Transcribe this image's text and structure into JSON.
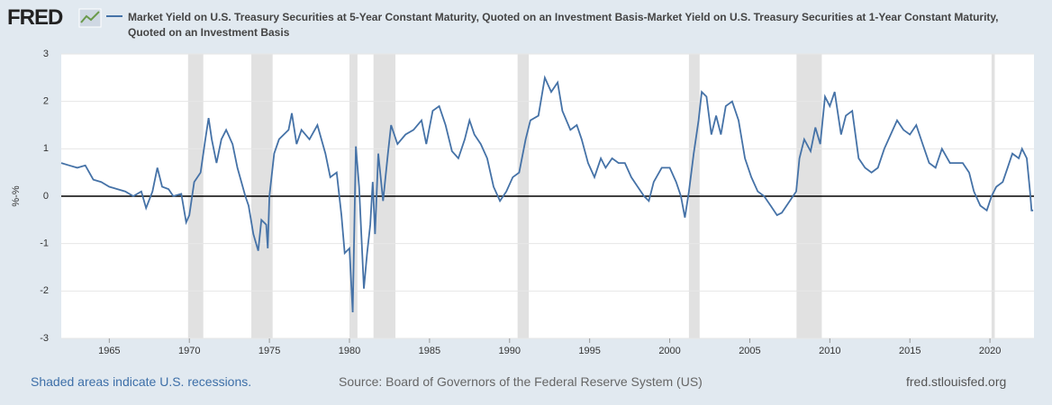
{
  "logo": "FRED",
  "footer": {
    "recessions_note": "Shaded areas indicate U.S. recessions.",
    "source": "Source: Board of Governors of the Federal Reserve System (US)",
    "site": "fred.stlouisfed.org"
  },
  "chart_data": {
    "type": "line",
    "ylabel": "%-%",
    "series": [
      {
        "name": "Market Yield on U.S. Treasury Securities at 5-Year Constant Maturity, Quoted on an Investment Basis-Market Yield on U.S. Treasury Securities at 1-Year Constant Maturity, Quoted on an Investment Basis",
        "color": "#4572a7",
        "x": [
          1962.0,
          1962.5,
          1963.0,
          1963.5,
          1964.0,
          1964.5,
          1965.0,
          1965.5,
          1966.0,
          1966.5,
          1967.0,
          1967.3,
          1967.7,
          1968.0,
          1968.3,
          1968.7,
          1969.0,
          1969.5,
          1969.8,
          1970.0,
          1970.3,
          1970.7,
          1971.0,
          1971.2,
          1971.4,
          1971.7,
          1972.0,
          1972.3,
          1972.7,
          1973.0,
          1973.5,
          1973.7,
          1974.0,
          1974.3,
          1974.5,
          1974.8,
          1974.9,
          1975.0,
          1975.3,
          1975.6,
          1975.9,
          1976.2,
          1976.4,
          1976.7,
          1977.0,
          1977.5,
          1978.0,
          1978.5,
          1978.8,
          1979.2,
          1979.5,
          1979.7,
          1980.0,
          1980.2,
          1980.4,
          1980.6,
          1980.9,
          1981.1,
          1981.3,
          1981.45,
          1981.6,
          1981.8,
          1982.1,
          1982.4,
          1982.6,
          1983.0,
          1983.5,
          1984.0,
          1984.5,
          1984.8,
          1985.2,
          1985.6,
          1986.0,
          1986.4,
          1986.8,
          1987.2,
          1987.5,
          1987.8,
          1988.2,
          1988.6,
          1989.0,
          1989.4,
          1989.8,
          1990.2,
          1990.6,
          1991.0,
          1991.3,
          1991.8,
          1992.2,
          1992.6,
          1993.0,
          1993.3,
          1993.8,
          1994.2,
          1994.5,
          1994.9,
          1995.3,
          1995.7,
          1996.0,
          1996.4,
          1996.8,
          1997.2,
          1997.6,
          1998.0,
          1998.4,
          1998.7,
          1999.0,
          1999.5,
          2000.0,
          2000.4,
          2000.7,
          2000.95,
          2001.2,
          2001.5,
          2001.8,
          2002.0,
          2002.3,
          2002.6,
          2002.9,
          2003.2,
          2003.5,
          2003.9,
          2004.3,
          2004.7,
          2005.1,
          2005.5,
          2005.9,
          2006.3,
          2006.7,
          2007.0,
          2007.5,
          2007.9,
          2008.1,
          2008.4,
          2008.8,
          2009.1,
          2009.4,
          2009.7,
          2010.0,
          2010.3,
          2010.7,
          2011.0,
          2011.4,
          2011.8,
          2012.2,
          2012.6,
          2013.0,
          2013.4,
          2013.8,
          2014.2,
          2014.6,
          2015.0,
          2015.4,
          2015.8,
          2016.2,
          2016.6,
          2017.0,
          2017.5,
          2017.9,
          2018.3,
          2018.7,
          2019.0,
          2019.4,
          2019.8,
          2020.1,
          2020.4,
          2020.8,
          2021.1,
          2021.4,
          2021.8,
          2022.0,
          2022.3,
          2022.5,
          2022.6,
          2022.7
        ],
        "values": [
          0.7,
          0.65,
          0.6,
          0.65,
          0.35,
          0.3,
          0.2,
          0.15,
          0.1,
          0.0,
          0.1,
          -0.25,
          0.1,
          0.6,
          0.2,
          0.15,
          0.0,
          0.05,
          -0.55,
          -0.4,
          0.3,
          0.5,
          1.2,
          1.65,
          1.2,
          0.7,
          1.2,
          1.4,
          1.1,
          0.6,
          0.0,
          -0.2,
          -0.8,
          -1.15,
          -0.5,
          -0.6,
          -1.1,
          0.0,
          0.9,
          1.2,
          1.3,
          1.4,
          1.75,
          1.1,
          1.4,
          1.2,
          1.5,
          0.9,
          0.4,
          0.5,
          -0.4,
          -1.2,
          -1.1,
          -2.45,
          1.05,
          0.2,
          -1.95,
          -1.2,
          -0.6,
          0.3,
          -0.8,
          0.9,
          -0.1,
          0.9,
          1.5,
          1.1,
          1.3,
          1.4,
          1.6,
          1.1,
          1.8,
          1.9,
          1.5,
          0.95,
          0.8,
          1.2,
          1.6,
          1.3,
          1.1,
          0.8,
          0.2,
          -0.1,
          0.1,
          0.4,
          0.5,
          1.2,
          1.6,
          1.7,
          2.5,
          2.2,
          2.4,
          1.8,
          1.4,
          1.5,
          1.2,
          0.7,
          0.4,
          0.8,
          0.6,
          0.8,
          0.7,
          0.7,
          0.4,
          0.2,
          0.0,
          -0.1,
          0.3,
          0.6,
          0.6,
          0.3,
          0.0,
          -0.45,
          0.1,
          0.9,
          1.6,
          2.2,
          2.1,
          1.3,
          1.7,
          1.3,
          1.9,
          2.0,
          1.6,
          0.8,
          0.4,
          0.1,
          0.0,
          -0.2,
          -0.4,
          -0.35,
          -0.1,
          0.1,
          0.8,
          1.2,
          0.95,
          1.45,
          1.1,
          2.1,
          1.9,
          2.2,
          1.3,
          1.7,
          1.8,
          0.8,
          0.6,
          0.5,
          0.6,
          1.0,
          1.3,
          1.6,
          1.4,
          1.3,
          1.5,
          1.1,
          0.7,
          0.6,
          1.0,
          0.7,
          0.7,
          0.7,
          0.5,
          0.1,
          -0.2,
          -0.3,
          0.0,
          0.2,
          0.3,
          0.6,
          0.9,
          0.8,
          1.0,
          0.8,
          0.1,
          -0.3,
          -0.3
        ]
      }
    ],
    "recessions": [
      [
        1969.92,
        1970.87
      ],
      [
        1973.87,
        1975.2
      ],
      [
        1980.0,
        1980.5
      ],
      [
        1981.5,
        1982.87
      ],
      [
        1990.5,
        1991.2
      ],
      [
        2001.2,
        2001.87
      ],
      [
        2007.92,
        2009.5
      ],
      [
        2020.1,
        2020.3
      ]
    ],
    "xlim": [
      1962.0,
      2022.75
    ],
    "xticks": [
      1965,
      1970,
      1975,
      1980,
      1985,
      1990,
      1995,
      2000,
      2005,
      2010,
      2015,
      2020
    ],
    "ylim": [
      -3,
      3
    ],
    "yticks": [
      -3,
      -2,
      -1,
      0,
      1,
      2,
      3
    ],
    "grid": true
  }
}
